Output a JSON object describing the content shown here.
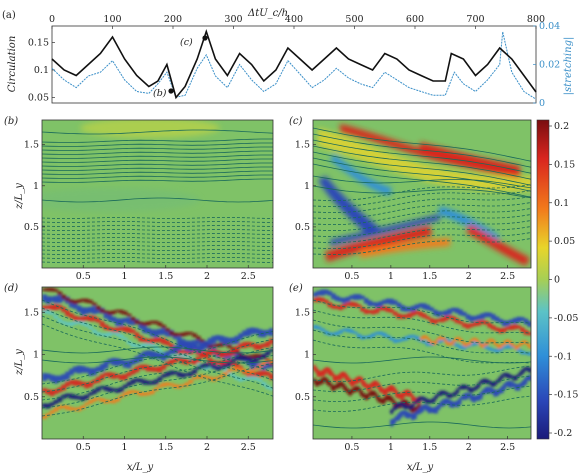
{
  "panel_labels": {
    "a": "(a)",
    "b": "(b)",
    "c": "(c)",
    "d": "(d)",
    "e": "(e)"
  },
  "markers": {
    "b": "(b)",
    "c": "(c)"
  },
  "colors": {
    "circulation": "#111111",
    "stretching": "#3a8fc8",
    "contour": "#1a6a5a"
  },
  "chart_data": [
    {
      "type": "line",
      "panel": "(a)",
      "top_xlabel": "ΔtU_c/h",
      "ylabel_left": "Circulation",
      "ylabel_right": "|stretching|",
      "xlim": [
        0,
        800
      ],
      "ylim_left": [
        0.04,
        0.18
      ],
      "ylim_right": [
        0,
        0.04
      ],
      "top_ticks": [
        "0",
        "100",
        "200",
        "300",
        "400",
        "500",
        "600",
        "700",
        "800"
      ],
      "left_ticks": [
        "0.05",
        "0.1",
        "0.15"
      ],
      "right_ticks": [
        "0",
        "0.02",
        "0.04"
      ],
      "series": [
        {
          "axis": "left",
          "x": [
            0,
            20,
            40,
            60,
            80,
            100,
            120,
            140,
            160,
            175,
            190,
            205,
            220,
            240,
            255,
            270,
            290,
            310,
            330,
            350,
            370,
            390,
            410,
            430,
            450,
            470,
            490,
            510,
            530,
            550,
            570,
            590,
            610,
            630,
            650,
            660,
            680,
            700,
            720,
            740,
            760,
            780,
            800
          ],
          "y": [
            0.12,
            0.1,
            0.09,
            0.11,
            0.13,
            0.16,
            0.12,
            0.09,
            0.07,
            0.08,
            0.11,
            0.05,
            0.07,
            0.12,
            0.17,
            0.12,
            0.09,
            0.13,
            0.11,
            0.08,
            0.1,
            0.14,
            0.12,
            0.1,
            0.12,
            0.14,
            0.12,
            0.11,
            0.1,
            0.13,
            0.12,
            0.1,
            0.09,
            0.08,
            0.08,
            0.13,
            0.12,
            0.09,
            0.11,
            0.14,
            0.12,
            0.09,
            0.06
          ]
        },
        {
          "axis": "right",
          "x": [
            0,
            20,
            40,
            60,
            80,
            100,
            120,
            140,
            160,
            175,
            190,
            205,
            220,
            240,
            255,
            270,
            290,
            310,
            330,
            350,
            370,
            390,
            410,
            430,
            450,
            470,
            490,
            510,
            530,
            550,
            570,
            590,
            610,
            630,
            650,
            665,
            680,
            700,
            720,
            740,
            745,
            760,
            780,
            800
          ],
          "y": [
            0.018,
            0.012,
            0.008,
            0.014,
            0.016,
            0.022,
            0.012,
            0.006,
            0.005,
            0.01,
            0.016,
            0.003,
            0.004,
            0.018,
            0.025,
            0.014,
            0.008,
            0.02,
            0.012,
            0.006,
            0.01,
            0.022,
            0.015,
            0.008,
            0.012,
            0.018,
            0.013,
            0.01,
            0.008,
            0.016,
            0.012,
            0.008,
            0.006,
            0.004,
            0.004,
            0.016,
            0.01,
            0.006,
            0.012,
            0.02,
            0.037,
            0.016,
            0.006,
            0.002
          ]
        }
      ]
    },
    {
      "type": "heatmap",
      "panels": [
        "(b)",
        "(c)",
        "(d)",
        "(e)"
      ],
      "xlabel": "x/L_y",
      "ylabel": "z/L_y",
      "xlim": [
        0,
        2.8
      ],
      "ylim": [
        0,
        1.8
      ],
      "x_ticks": [
        "0.5",
        "1",
        "1.5",
        "2",
        "2.5"
      ],
      "y_ticks": [
        "0.5",
        "1",
        "1.5"
      ],
      "colorbar": {
        "range": [
          -0.2,
          0.2
        ],
        "ticks": [
          "0.2",
          "0.15",
          "0.1",
          "0.05",
          "0",
          "-0.05",
          "-0.1",
          "-0.15",
          "-0.2"
        ]
      }
    }
  ]
}
